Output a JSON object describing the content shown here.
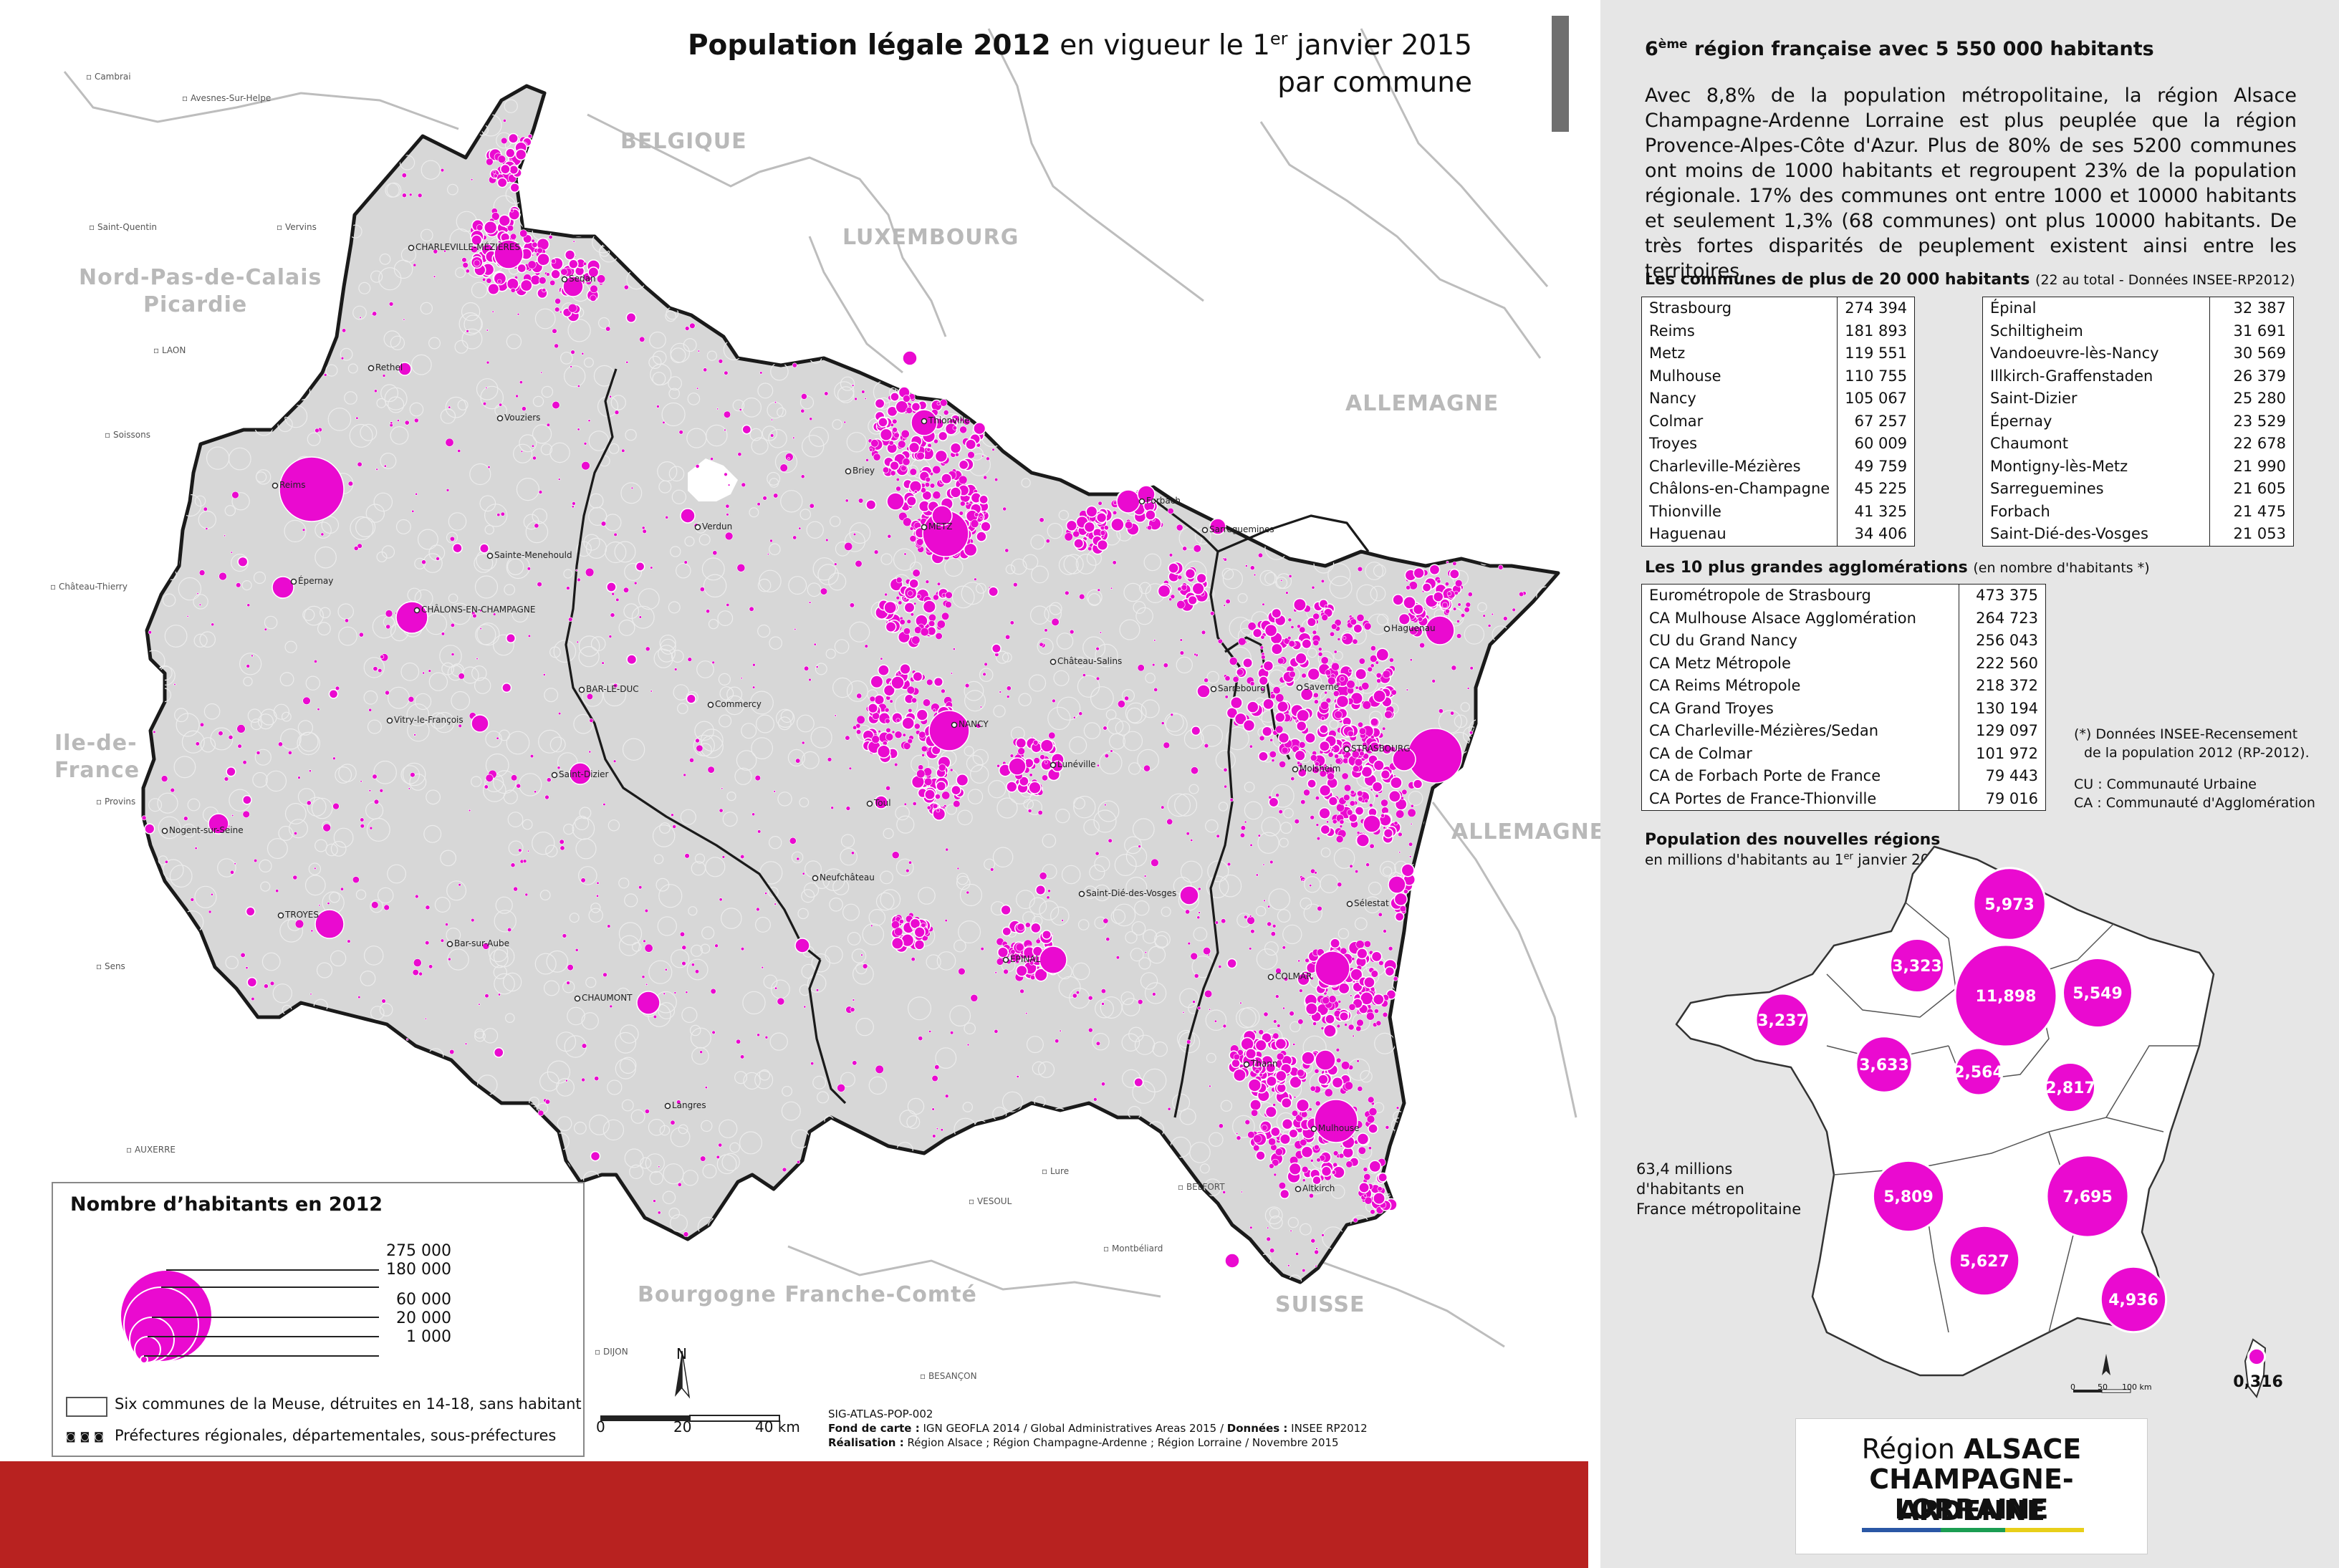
{
  "title": {
    "bold": "Population légale 2012",
    "rest": " en vigueur le 1",
    "sup": "er",
    "after": " janvier 2015",
    "line2": "par commune"
  },
  "neighbours": [
    "BELGIQUE",
    "LUXEMBOURG",
    "ALLEMAGNE",
    "ALLEMAGNE",
    "SUISSE",
    "Bourgogne Franche-Comté",
    "Nord-Pas-de-Calais Picardie",
    "Ile-de-France"
  ],
  "neighbour_labels": {
    "belgique": "BELGIQUE",
    "luxembourg": "LUXEMBOURG",
    "allemagne1": "ALLEMAGNE",
    "allemagne2": "ALLEMAGNE",
    "suisse": "SUISSE",
    "bourgogne": "Bourgogne Franche-Comté",
    "nord": "Nord-Pas-de-Calais",
    "picardie": "Picardie",
    "idf1": "Ile-de-",
    "idf2": "France"
  },
  "cities": {
    "charleville": "CHARLEVILLE-MÉZIÈRES",
    "sedan": "Sedan",
    "rethel": "Rethel",
    "vouziers": "Vouziers",
    "reims": "Reims",
    "epernay": "Épernay",
    "chalons": "CHÂLONS-EN-CHAMPAGNE",
    "stemenehould": "Sainte-Menehould",
    "vitry": "Vitry-le-François",
    "stdizier": "Saint-Dizier",
    "nogent": "Nogent-sur-Seine",
    "troyes": "TROYES",
    "barsuraube": "Bar-sur-Aube",
    "chaumont": "CHAUMONT",
    "langres": "Langres",
    "verdun": "Verdun",
    "barleduc": "BAR-LE-DUC",
    "commercy": "Commercy",
    "briey": "Briey",
    "thionville": "Thionville",
    "metz": "METZ",
    "forbach": "Forbach",
    "sarreguemines": "Sarreguemines",
    "chateausalins": "Château-Salins",
    "sarrebourg": "Sarrebourg",
    "nancy": "NANCY",
    "luneville": "Lunéville",
    "toul": "Toul",
    "neufchateau": "Neufchâteau",
    "stdie": "Saint-Dié-des-Vosges",
    "epinal": "ÉPINAL",
    "haguenau": "Haguenau",
    "saverne": "Saverne",
    "strasbourg": "STRASBOURG",
    "molsheim": "Molsheim",
    "selestat": "Sélestat",
    "colmar": "COLMAR",
    "thann": "Thann",
    "mulhouse": "Mulhouse",
    "altkirch": "Altkirch"
  },
  "ext_cities": {
    "cambrai": "Cambrai",
    "avesnes": "Avesnes-Sur-Helpe",
    "stquentin": "Saint-Quentin",
    "vervins": "Vervins",
    "laon": "LAON",
    "soissons": "Soissons",
    "chateauthierry": "Château-Thierry",
    "provins": "Provins",
    "sens": "Sens",
    "auxerre": "AUXERRE",
    "vesoul": "VESOUL",
    "lure": "Lure",
    "belfort": "BELFORT",
    "montbeliard": "Montbéliard",
    "besancon": "BESANÇON",
    "dijon": "DIJON"
  },
  "legend": {
    "title": "Nombre d’habitants en 2012",
    "values": [
      "275 000",
      "180 000",
      "60 000",
      "20 000",
      "1 000"
    ],
    "destroyed": "Six communes de la Meuse, détruites en 14-18, sans habitant",
    "prefectures": "Préfectures régionales, départementales, sous-préfectures"
  },
  "scale": {
    "labels": [
      "0",
      "20",
      "40 km"
    ]
  },
  "north": "N",
  "credits": {
    "code": "SIG-ATLAS-POP-002",
    "fond_label": "Fond de carte :",
    "fond": " IGN GEOFLA 2014 / Global Administratives Areas 2015 / ",
    "donnees_label": "Données :",
    "donnees": " INSEE RP2012",
    "real_label": "Réalisation :",
    "real": " Région Alsace ; Région Champagne-Ardenne ; Région Lorraine / Novembre 2015"
  },
  "right": {
    "heading_pre": "6",
    "heading_sup": "ème",
    "heading_post": " région française avec 5 550 000 habitants",
    "intro": "Avec 8,8% de la population métropolitaine, la région Alsace Champagne-Ardenne Lorraine est plus peuplée que la région Provence-Alpes-Côte d'Azur. Plus de 80% de ses 5200 communes ont moins de 1000 habitants et regroupent 23% de la population régionale. 17% des communes ont entre 1000 et 10000 habitants et seulement 1,3% (68 communes) ont plus 10000 habitants. De très fortes disparités de peuplement existent ainsi entre les territoires.",
    "communes_title": "Les communes de plus de 20 000 habitants",
    "communes_sub": "(22 au total - Données INSEE-RP2012)",
    "communes_left": [
      [
        "Strasbourg",
        "274 394"
      ],
      [
        "Reims",
        "181 893"
      ],
      [
        "Metz",
        "119 551"
      ],
      [
        "Mulhouse",
        "110 755"
      ],
      [
        "Nancy",
        "105 067"
      ],
      [
        "Colmar",
        "67 257"
      ],
      [
        "Troyes",
        "60 009"
      ],
      [
        "Charleville-Mézières",
        "49 759"
      ],
      [
        "Châlons-en-Champagne",
        "45 225"
      ],
      [
        "Thionville",
        "41 325"
      ],
      [
        "Haguenau",
        "34 406"
      ]
    ],
    "communes_right": [
      [
        "Épinal",
        "32 387"
      ],
      [
        "Schiltigheim",
        "31 691"
      ],
      [
        "Vandoeuvre-lès-Nancy",
        "30 569"
      ],
      [
        "Illkirch-Graffenstaden",
        "26 379"
      ],
      [
        "Saint-Dizier",
        "25 280"
      ],
      [
        "Épernay",
        "23 529"
      ],
      [
        "Chaumont",
        "22 678"
      ],
      [
        "Montigny-lès-Metz",
        "21 990"
      ],
      [
        "Sarreguemines",
        "21 605"
      ],
      [
        "Forbach",
        "21 475"
      ],
      [
        "Saint-Dié-des-Vosges",
        "21 053"
      ]
    ],
    "agglo_title": "Les 10 plus grandes agglomérations",
    "agglo_sub": "(en nombre d'habitants *)",
    "agglo": [
      [
        "Eurométropole de Strasbourg",
        "473 375"
      ],
      [
        "CA Mulhouse Alsace Agglomération",
        "264 723"
      ],
      [
        "CU du Grand Nancy",
        "256 043"
      ],
      [
        "CA Metz Métropole",
        "222 560"
      ],
      [
        "CA Reims Métropole",
        "218 372"
      ],
      [
        "CA Grand Troyes",
        "130 194"
      ],
      [
        "CA Charleville-Mézières/Sedan",
        "129 097"
      ],
      [
        "CA de Colmar",
        "101 972"
      ],
      [
        "CA de Forbach Porte de France",
        "79 443"
      ],
      [
        "CA Portes de France-Thionville",
        "79 016"
      ]
    ],
    "agglo_note1": "(*) Données INSEE-Recensement",
    "agglo_note2": "de la population 2012 (RP-2012).",
    "agglo_note3": "CU : Communauté Urbaine",
    "agglo_note4": "CA : Communauté d'Agglomération",
    "regions_title": "Population des nouvelles régions",
    "regions_sub_pre": "en millions d'habitants au 1",
    "regions_sub_sup": "er",
    "regions_sub_post": " janvier 2012",
    "total1": "63,4 millions",
    "total2": "d'habitants en",
    "total3": "France métropolitaine",
    "region_values": [
      5.973,
      3.323,
      11.898,
      5.549,
      3.237,
      3.633,
      2.564,
      2.817,
      5.809,
      7.695,
      5.627,
      4.936,
      0.316
    ],
    "region_labels": [
      "5,973",
      "3,323",
      "11,898",
      "5,549",
      "3,237",
      "3,633",
      "2,564",
      "2,817",
      "5,809",
      "7,695",
      "5,627",
      "4,936",
      "0,316"
    ],
    "mini_scale": [
      "0",
      "50",
      "100 km"
    ]
  },
  "logo": {
    "line1_pre": "Région ",
    "line1_bold": "ALSACE",
    "line2": "CHAMPAGNE-ARDENNE",
    "line3": "LORRAINE"
  },
  "colors": {
    "bubble": "#ea0ad0",
    "land": "#d7d7d7",
    "border": "#1a1a1a",
    "footer": "#b82220",
    "panel": "#e6e6e6"
  }
}
